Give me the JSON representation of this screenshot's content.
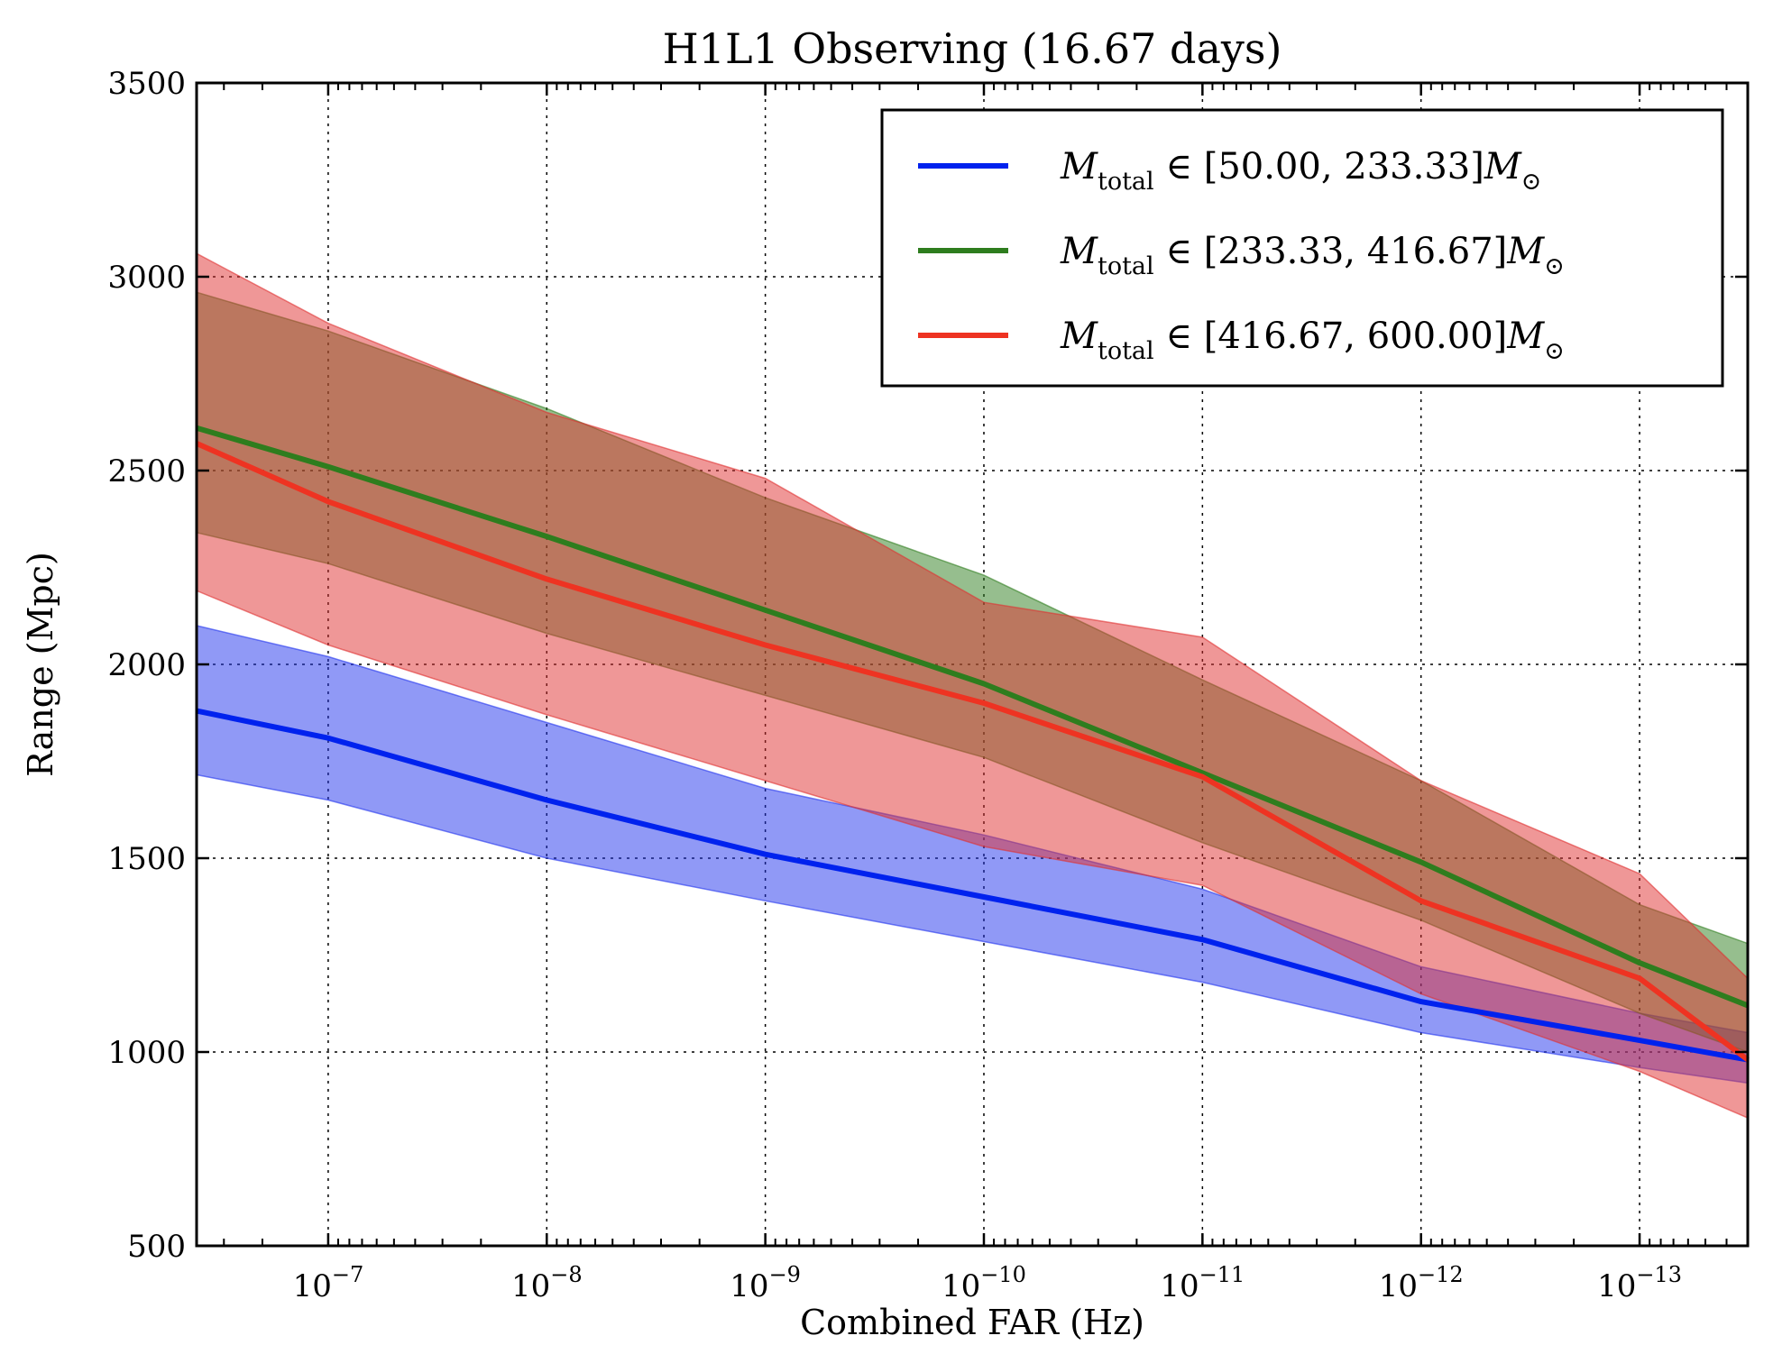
{
  "chart_data": {
    "type": "line",
    "title": "H1L1 Observing (16.67 days)",
    "xlabel": "Combined FAR (Hz)",
    "ylabel": "Range (Mpc)",
    "x_scale": "log",
    "x_reversed": true,
    "xlim": [
      4e-07,
      3.2e-14
    ],
    "ylim": [
      500,
      3500
    ],
    "grid": true,
    "legend_position": "top-right",
    "x_tick_values": [
      1e-07,
      1e-08,
      1e-09,
      1e-10,
      1e-11,
      1e-12,
      1e-13
    ],
    "x_tick_labels": [
      {
        "base": "10",
        "exp": "−7"
      },
      {
        "base": "10",
        "exp": "−8"
      },
      {
        "base": "10",
        "exp": "−9"
      },
      {
        "base": "10",
        "exp": "−10"
      },
      {
        "base": "10",
        "exp": "−11"
      },
      {
        "base": "10",
        "exp": "−12"
      },
      {
        "base": "10",
        "exp": "−13"
      }
    ],
    "y_ticks": [
      500,
      1000,
      1500,
      2000,
      2500,
      3000,
      3500
    ],
    "y_tick_labels": [
      "500",
      "1000",
      "1500",
      "2000",
      "2500",
      "3000",
      "3500"
    ],
    "x": [
      4e-07,
      1e-07,
      1e-08,
      1e-09,
      1e-10,
      1e-11,
      1e-12,
      1e-13,
      3.2e-14
    ],
    "series": [
      {
        "name": "M_total ∈ [50.00, 233.33] M_⊙",
        "legend": {
          "sym": "M",
          "sub": "total",
          "range": " ∈ [50.00, 233.33]",
          "unit": "M",
          "unit_sub": "⊙"
        },
        "color": "#0022ee",
        "fill": "#2233ee",
        "values": [
          1880,
          1810,
          1650,
          1510,
          1400,
          1290,
          1130,
          1030,
          980
        ],
        "lower": [
          1715,
          1650,
          1500,
          1390,
          1285,
          1180,
          1050,
          960,
          920
        ],
        "upper": [
          2100,
          2020,
          1850,
          1680,
          1560,
          1420,
          1220,
          1100,
          1050
        ]
      },
      {
        "name": "M_total ∈ [233.33, 416.67] M_⊙",
        "legend": {
          "sym": "M",
          "sub": "total",
          "range": " ∈ [233.33, 416.67]",
          "unit": "M",
          "unit_sub": "⊙"
        },
        "color": "#2e7d1e",
        "fill": "#2e7d1e",
        "values": [
          2610,
          2510,
          2330,
          2140,
          1950,
          1720,
          1490,
          1230,
          1120
        ],
        "lower": [
          2340,
          2260,
          2080,
          1920,
          1760,
          1540,
          1340,
          1100,
          1000
        ],
        "upper": [
          2960,
          2860,
          2660,
          2430,
          2230,
          1960,
          1700,
          1380,
          1280
        ]
      },
      {
        "name": "M_total ∈ [416.67, 600.00] M_⊙",
        "legend": {
          "sym": "M",
          "sub": "total",
          "range": " ∈ [416.67, 600.00]",
          "unit": "M",
          "unit_sub": "⊙"
        },
        "color": "#ee3322",
        "fill": "#e03030",
        "values": [
          2570,
          2420,
          2220,
          2050,
          1900,
          1710,
          1390,
          1190,
          980
        ],
        "lower": [
          2190,
          2050,
          1870,
          1700,
          1530,
          1430,
          1150,
          950,
          830
        ],
        "upper": [
          3060,
          2880,
          2650,
          2480,
          2160,
          2070,
          1700,
          1460,
          1190
        ]
      }
    ]
  }
}
